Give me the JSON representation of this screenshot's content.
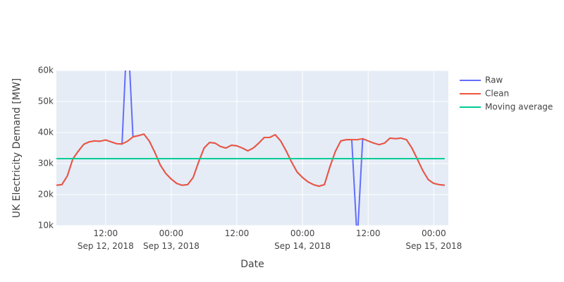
{
  "chart_data": {
    "type": "line",
    "xlabel": "Date",
    "ylabel": "UK Electricity Demand [MW]",
    "x": [
      "2018-09-12 03:00",
      "2018-09-12 04:00",
      "2018-09-12 05:00",
      "2018-09-12 06:00",
      "2018-09-12 07:00",
      "2018-09-12 08:00",
      "2018-09-12 09:00",
      "2018-09-12 10:00",
      "2018-09-12 11:00",
      "2018-09-12 12:00",
      "2018-09-12 13:00",
      "2018-09-12 14:00",
      "2018-09-12 15:00",
      "2018-09-12 16:00",
      "2018-09-12 17:00",
      "2018-09-12 18:00",
      "2018-09-12 19:00",
      "2018-09-12 20:00",
      "2018-09-12 21:00",
      "2018-09-12 22:00",
      "2018-09-12 23:00",
      "2018-09-13 00:00",
      "2018-09-13 01:00",
      "2018-09-13 02:00",
      "2018-09-13 03:00",
      "2018-09-13 04:00",
      "2018-09-13 05:00",
      "2018-09-13 06:00",
      "2018-09-13 07:00",
      "2018-09-13 08:00",
      "2018-09-13 09:00",
      "2018-09-13 10:00",
      "2018-09-13 11:00",
      "2018-09-13 12:00",
      "2018-09-13 13:00",
      "2018-09-13 14:00",
      "2018-09-13 15:00",
      "2018-09-13 16:00",
      "2018-09-13 17:00",
      "2018-09-13 18:00",
      "2018-09-13 19:00",
      "2018-09-13 20:00",
      "2018-09-13 21:00",
      "2018-09-13 22:00",
      "2018-09-13 23:00",
      "2018-09-14 00:00",
      "2018-09-14 01:00",
      "2018-09-14 02:00",
      "2018-09-14 03:00",
      "2018-09-14 04:00",
      "2018-09-14 05:00",
      "2018-09-14 06:00",
      "2018-09-14 07:00",
      "2018-09-14 08:00",
      "2018-09-14 09:00",
      "2018-09-14 10:00",
      "2018-09-14 11:00",
      "2018-09-14 12:00",
      "2018-09-14 13:00",
      "2018-09-14 14:00",
      "2018-09-14 15:00",
      "2018-09-14 16:00",
      "2018-09-14 17:00",
      "2018-09-14 18:00",
      "2018-09-14 19:00",
      "2018-09-14 20:00",
      "2018-09-14 21:00",
      "2018-09-14 22:00",
      "2018-09-14 23:00",
      "2018-09-15 00:00",
      "2018-09-15 01:00",
      "2018-09-15 02:00"
    ],
    "series": [
      {
        "name": "Raw",
        "color": "#636efa",
        "values": [
          23000,
          23200,
          26000,
          31500,
          34000,
          36200,
          37000,
          37300,
          37200,
          37600,
          37000,
          36400,
          36300,
          75000,
          38600,
          39000,
          39500,
          37200,
          33600,
          29500,
          26800,
          25000,
          23600,
          23000,
          23200,
          25500,
          30500,
          35000,
          36800,
          36600,
          35500,
          35000,
          35900,
          35700,
          35000,
          34100,
          35000,
          36600,
          38400,
          38400,
          39300,
          37300,
          34100,
          30500,
          27300,
          25500,
          24100,
          23200,
          22700,
          23200,
          28900,
          33900,
          37300,
          37700,
          37700,
          5000,
          38000,
          37300,
          36600,
          36100,
          36600,
          38200,
          38000,
          38200,
          37700,
          35000,
          31400,
          27700,
          24800,
          23600,
          23200,
          23000
        ]
      },
      {
        "name": "Clean",
        "color": "#ef553b",
        "values": [
          23000,
          23200,
          26000,
          31500,
          34000,
          36200,
          37000,
          37300,
          37200,
          37600,
          37000,
          36400,
          36300,
          37200,
          38600,
          39000,
          39500,
          37200,
          33600,
          29500,
          26800,
          25000,
          23600,
          23000,
          23200,
          25500,
          30500,
          35000,
          36800,
          36600,
          35500,
          35000,
          35900,
          35700,
          35000,
          34100,
          35000,
          36600,
          38400,
          38400,
          39300,
          37300,
          34100,
          30500,
          27300,
          25500,
          24100,
          23200,
          22700,
          23200,
          28900,
          33900,
          37300,
          37700,
          37700,
          37700,
          38000,
          37300,
          36600,
          36100,
          36600,
          38200,
          38000,
          38200,
          37700,
          35000,
          31400,
          27700,
          24800,
          23600,
          23200,
          23000
        ]
      },
      {
        "name": "Moving average",
        "color": "#00cc96",
        "values": [
          31600,
          31600,
          31600,
          31600,
          31600,
          31600,
          31600,
          31600,
          31600,
          31600,
          31600,
          31600,
          31600,
          31600,
          31600,
          31600,
          31600,
          31600,
          31600,
          31600,
          31600,
          31600,
          31600,
          31600,
          31600,
          31600,
          31600,
          31600,
          31600,
          31600,
          31600,
          31600,
          31600,
          31600,
          31600,
          31600,
          31600,
          31600,
          31600,
          31600,
          31600,
          31600,
          31600,
          31600,
          31600,
          31600,
          31600,
          31600,
          31600,
          31600,
          31600,
          31600,
          31600,
          31600,
          31600,
          31600,
          31600,
          31600,
          31600,
          31600,
          31600,
          31600,
          31600,
          31600,
          31600,
          31600,
          31600,
          31600,
          31600,
          31600,
          31600,
          31600
        ]
      }
    ],
    "xlim": [
      "2018-09-12 03:00",
      "2018-09-15 02:40"
    ],
    "xticks": [
      {
        "value": "2018-09-12 12:00",
        "label": "12:00\nSep 12, 2018"
      },
      {
        "value": "2018-09-13 00:00",
        "label": "00:00\nSep 13, 2018"
      },
      {
        "value": "2018-09-13 12:00",
        "label": "12:00"
      },
      {
        "value": "2018-09-14 00:00",
        "label": "00:00\nSep 14, 2018"
      },
      {
        "value": "2018-09-14 12:00",
        "label": "12:00"
      },
      {
        "value": "2018-09-15 00:00",
        "label": "00:00\nSep 15, 2018"
      }
    ],
    "ylim": [
      10000,
      60000
    ],
    "yticks": [
      {
        "value": 10000,
        "label": "10k"
      },
      {
        "value": 20000,
        "label": "20k"
      },
      {
        "value": 30000,
        "label": "30k"
      },
      {
        "value": 40000,
        "label": "40k"
      },
      {
        "value": 50000,
        "label": "50k"
      },
      {
        "value": 60000,
        "label": "60k"
      }
    ],
    "grid": true,
    "legend": "right"
  }
}
